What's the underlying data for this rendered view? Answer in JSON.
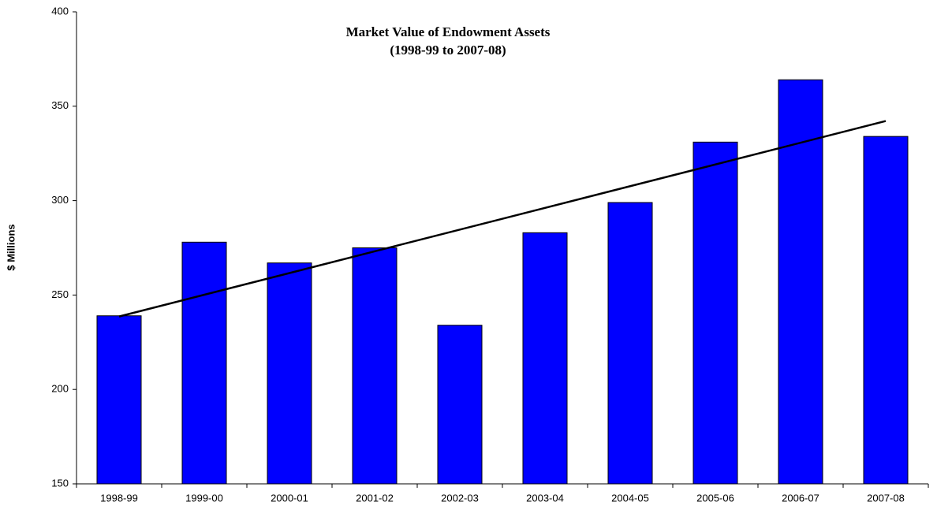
{
  "chart_data": {
    "type": "bar",
    "title": "Market Value of Endowment Assets",
    "subtitle": "(1998-99 to 2007-08)",
    "y_label": "$ Millions",
    "categories": [
      "1998-99",
      "1999-00",
      "2000-01",
      "2001-02",
      "2002-03",
      "2003-04",
      "2004-05",
      "2005-06",
      "2006-07",
      "2007-08"
    ],
    "values": [
      239,
      278,
      267,
      275,
      234,
      283,
      299,
      331,
      364,
      334
    ],
    "color": "#0000ff",
    "trendline": true,
    "ylim": [
      150,
      400
    ],
    "yticks": [
      150,
      200,
      250,
      300,
      350,
      400
    ],
    "grid": false
  }
}
